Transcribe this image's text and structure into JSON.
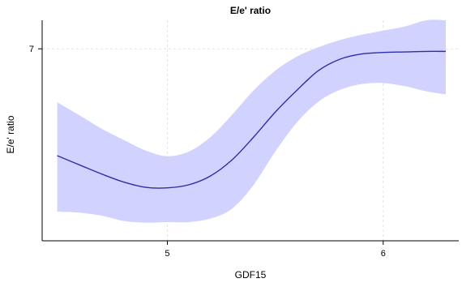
{
  "chart_data": {
    "type": "line",
    "title": "E/e' ratio",
    "xlabel": "GDF15",
    "ylabel": "E/e' ratio",
    "xlim": [
      4.42,
      6.35
    ],
    "ylim": [
      3.3,
      7.55
    ],
    "x_ticks": [
      {
        "value": 5,
        "label": "5"
      },
      {
        "value": 6,
        "label": "6"
      }
    ],
    "y_ticks": [
      {
        "value": 7,
        "label": "7"
      }
    ],
    "grid": true,
    "legend": "none",
    "colors": {
      "line": "#2e2ea8",
      "band": "#d2d2ff",
      "grid": "#e3e3e3",
      "axis": "#000000"
    },
    "series": [
      {
        "x": [
          4.49,
          4.6,
          4.7,
          4.8,
          4.9,
          5.0,
          5.1,
          5.2,
          5.3,
          5.4,
          5.5,
          5.6,
          5.7,
          5.8,
          5.9,
          6.0,
          6.1,
          6.2,
          6.29
        ],
        "y": [
          4.94,
          4.75,
          4.58,
          4.43,
          4.33,
          4.32,
          4.38,
          4.55,
          4.86,
          5.3,
          5.78,
          6.2,
          6.58,
          6.8,
          6.9,
          6.93,
          6.94,
          6.95,
          6.95
        ],
        "lower": [
          3.86,
          3.84,
          3.78,
          3.68,
          3.65,
          3.66,
          3.66,
          3.73,
          3.92,
          4.38,
          5.02,
          5.58,
          5.98,
          6.21,
          6.32,
          6.34,
          6.28,
          6.18,
          6.12
        ],
        "upper": [
          5.97,
          5.7,
          5.45,
          5.24,
          5.04,
          4.93,
          5.02,
          5.3,
          5.73,
          6.2,
          6.58,
          6.85,
          7.03,
          7.17,
          7.27,
          7.35,
          7.43,
          7.55,
          7.64
        ]
      }
    ]
  }
}
